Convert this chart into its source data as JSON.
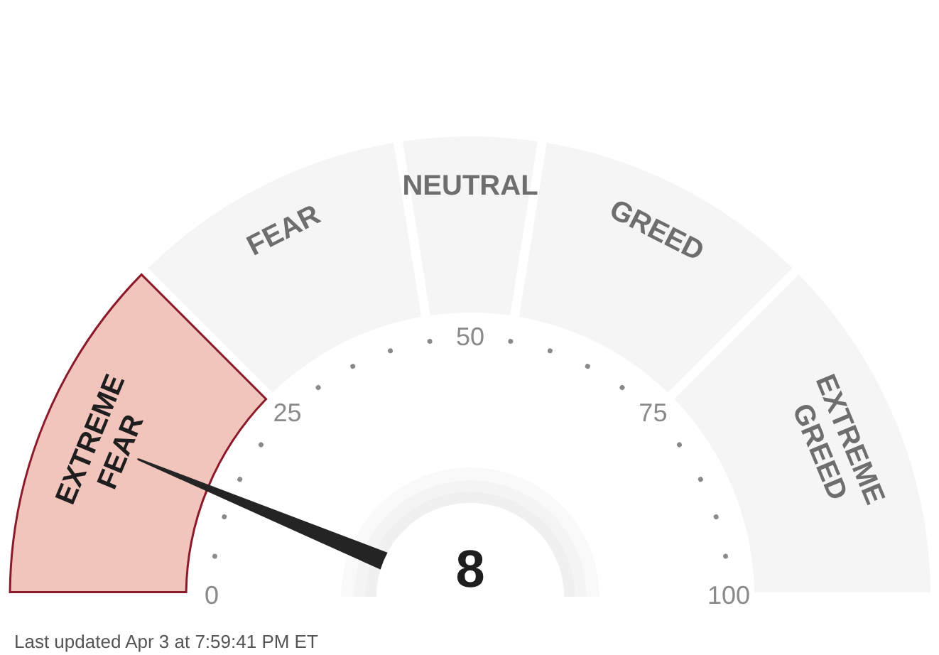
{
  "chart_data": {
    "type": "donut",
    "categories": [
      "EXTREME FEAR",
      "FEAR",
      "NEUTRAL",
      "GREED",
      "EXTREME GREED"
    ],
    "values": [
      25,
      20,
      10,
      20,
      25
    ],
    "colors": [
      "#f1c4bc",
      "#f5f5f5",
      "#f5f5f5",
      "#f5f5f5",
      "#f5f5f5"
    ],
    "needle": "EXTREME FEAR",
    "annotations": [
      "0",
      "25",
      "50",
      "75",
      "100",
      "8",
      "Last updated Apr 3 at 7:59:41 PM ET"
    ]
  }
}
